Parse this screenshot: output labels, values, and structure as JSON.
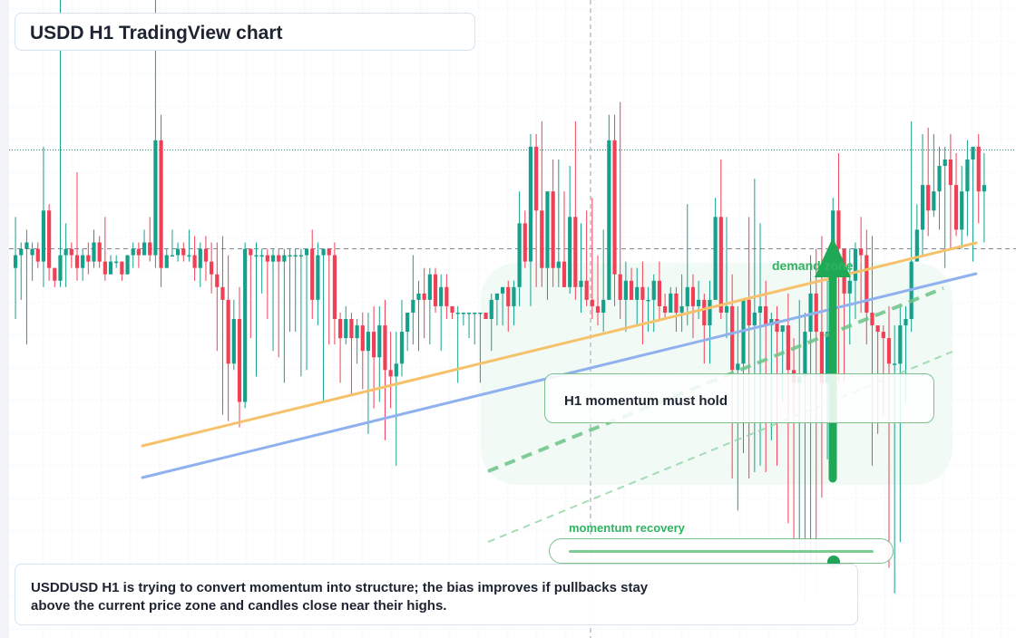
{
  "header": {
    "title": "USDD H1 TradingView chart"
  },
  "annotations": {
    "callout_text": "H1 momentum must hold",
    "zone_label": "demand zone",
    "momentum_label": "momentum recovery",
    "note_text": "USDDUSD H1 is trying to convert momentum into structure; the bias improves if pullbacks stay above the current price zone and candles close near their highs."
  },
  "momentum": {
    "level": 0.87
  },
  "colors": {
    "up": "#16a08c",
    "down": "#ef4056",
    "ma_fast": "#f5c26b",
    "ma_slow": "#8fb1ee",
    "zone": "#e8f6ec",
    "accent_green": "#1fa855"
  },
  "chart_data": {
    "type": "candlestick",
    "title": "USDD H1 TradingView chart",
    "ylim": [
      0,
      100
    ],
    "reference_lines": {
      "dashed_price": 61,
      "dotted_high": 76.5
    },
    "candles": [
      [
        58,
        60,
        66,
        50
      ],
      [
        60,
        61,
        62,
        53
      ],
      [
        61,
        62,
        64,
        46
      ],
      [
        60,
        61,
        62,
        56
      ],
      [
        61,
        59,
        62,
        58
      ],
      [
        59,
        67,
        77,
        55
      ],
      [
        67,
        58,
        68,
        56
      ],
      [
        58,
        56,
        58,
        55
      ],
      [
        56,
        60,
        100,
        55
      ],
      [
        60,
        61,
        65,
        55
      ],
      [
        61,
        60,
        62,
        58
      ],
      [
        60,
        58,
        73,
        56
      ],
      [
        58,
        60,
        61,
        56
      ],
      [
        60,
        59,
        62,
        57
      ],
      [
        59,
        62,
        64,
        58
      ],
      [
        62,
        59,
        63,
        58
      ],
      [
        59,
        57,
        66,
        56
      ],
      [
        57,
        59,
        60,
        58
      ],
      [
        59,
        59,
        60,
        58
      ],
      [
        59,
        57,
        59,
        56
      ],
      [
        57,
        60,
        60,
        57
      ],
      [
        60,
        61,
        62,
        58
      ],
      [
        61,
        60,
        62,
        58
      ],
      [
        60,
        62,
        64,
        60
      ],
      [
        62,
        60,
        66,
        59
      ],
      [
        60,
        78,
        100,
        58
      ],
      [
        78,
        58,
        82,
        55
      ],
      [
        58,
        60,
        61,
        58
      ],
      [
        60,
        60,
        64,
        60
      ],
      [
        60,
        61,
        62,
        59
      ],
      [
        61,
        60,
        62,
        59
      ],
      [
        60,
        60,
        64,
        59
      ],
      [
        60,
        58,
        63,
        56
      ],
      [
        58,
        61,
        62,
        55
      ],
      [
        61,
        59,
        63,
        56
      ],
      [
        59,
        57,
        62,
        54
      ],
      [
        57,
        55,
        62,
        45
      ],
      [
        55,
        53,
        63,
        35
      ],
      [
        53,
        43,
        60,
        34
      ],
      [
        43,
        50,
        53,
        42
      ],
      [
        50,
        37,
        55,
        33
      ],
      [
        37,
        61,
        62,
        36
      ],
      [
        61,
        60,
        61,
        47
      ],
      [
        60,
        60,
        62,
        41
      ],
      [
        60,
        60,
        61,
        54
      ],
      [
        60,
        59,
        61,
        50
      ],
      [
        59,
        60,
        61,
        45
      ],
      [
        60,
        59,
        61,
        44
      ],
      [
        59,
        60,
        61,
        40
      ],
      [
        60,
        60,
        61,
        48
      ],
      [
        60,
        60,
        61,
        48
      ],
      [
        60,
        60,
        61,
        41
      ],
      [
        60,
        61,
        61,
        42
      ],
      [
        61,
        53,
        64,
        50
      ],
      [
        53,
        60,
        62,
        49
      ],
      [
        60,
        61,
        61,
        37
      ],
      [
        61,
        60,
        61,
        46
      ],
      [
        60,
        50,
        62,
        46
      ],
      [
        50,
        47,
        51,
        40
      ],
      [
        47,
        50,
        52,
        46
      ],
      [
        50,
        47,
        51,
        38
      ],
      [
        47,
        49,
        50,
        43
      ],
      [
        49,
        45,
        51,
        39
      ],
      [
        45,
        48,
        51,
        32
      ],
      [
        48,
        44,
        52,
        36
      ],
      [
        44,
        49,
        52,
        37
      ],
      [
        49,
        42,
        53,
        31
      ],
      [
        42,
        41,
        48,
        36
      ],
      [
        41,
        43,
        48,
        27
      ],
      [
        43,
        48,
        53,
        41
      ],
      [
        48,
        51,
        51,
        45
      ],
      [
        51,
        53,
        60,
        46
      ],
      [
        53,
        54,
        56,
        45
      ],
      [
        54,
        53,
        58,
        47
      ],
      [
        53,
        57,
        58,
        46
      ],
      [
        57,
        52,
        58,
        51
      ],
      [
        52,
        55,
        57,
        45
      ],
      [
        55,
        52,
        57,
        50
      ],
      [
        52,
        51,
        52,
        50
      ],
      [
        51,
        51,
        52,
        40
      ],
      [
        51,
        51,
        51,
        49
      ],
      [
        51,
        51,
        51,
        47
      ],
      [
        51,
        51,
        51,
        46
      ],
      [
        51,
        51,
        51,
        40
      ],
      [
        51,
        50,
        51,
        50
      ],
      [
        50,
        53,
        54,
        45
      ],
      [
        53,
        54,
        54,
        49
      ],
      [
        54,
        55,
        55,
        49
      ],
      [
        55,
        52,
        56,
        48
      ],
      [
        52,
        55,
        56,
        49
      ],
      [
        55,
        65,
        70,
        52
      ],
      [
        65,
        59,
        67,
        58
      ],
      [
        59,
        77,
        79,
        52
      ],
      [
        77,
        67,
        79,
        55
      ],
      [
        67,
        58,
        81,
        55
      ],
      [
        58,
        70,
        70,
        53
      ],
      [
        70,
        58,
        75,
        55
      ],
      [
        58,
        59,
        75,
        55
      ],
      [
        59,
        55,
        70,
        55
      ],
      [
        55,
        66,
        74,
        54
      ],
      [
        66,
        55,
        81,
        53
      ],
      [
        55,
        56,
        65,
        51
      ],
      [
        56,
        53,
        67,
        52
      ],
      [
        53,
        52,
        69,
        50
      ],
      [
        52,
        51,
        60,
        49
      ],
      [
        51,
        53,
        64,
        48
      ],
      [
        53,
        78,
        82,
        54
      ],
      [
        78,
        57,
        82,
        52
      ],
      [
        57,
        53,
        84,
        50
      ],
      [
        53,
        56,
        59,
        48
      ],
      [
        56,
        53,
        58,
        53
      ],
      [
        53,
        55,
        58,
        49
      ],
      [
        55,
        53,
        59,
        46
      ],
      [
        53,
        53,
        55,
        48
      ],
      [
        53,
        56,
        57,
        48
      ],
      [
        56,
        52,
        59,
        50
      ],
      [
        52,
        51,
        54,
        50
      ],
      [
        51,
        54,
        55,
        52
      ],
      [
        54,
        51,
        55,
        48
      ],
      [
        51,
        52,
        57,
        48
      ],
      [
        52,
        55,
        68,
        49
      ],
      [
        55,
        52,
        57,
        47
      ],
      [
        52,
        53,
        56,
        50
      ],
      [
        53,
        49,
        54,
        43
      ],
      [
        49,
        53,
        56,
        43
      ],
      [
        53,
        66,
        69,
        53
      ],
      [
        66,
        51,
        75,
        50
      ],
      [
        51,
        52,
        66,
        47
      ],
      [
        52,
        42,
        57,
        25
      ],
      [
        42,
        43,
        52,
        20
      ],
      [
        43,
        53,
        53,
        29
      ],
      [
        53,
        49,
        66,
        25
      ],
      [
        49,
        51,
        72,
        26
      ],
      [
        51,
        52,
        65,
        27
      ],
      [
        52,
        49,
        56,
        26
      ],
      [
        49,
        50,
        51,
        31
      ],
      [
        50,
        48,
        52,
        27
      ],
      [
        48,
        49,
        48,
        37
      ],
      [
        49,
        42,
        54,
        18
      ],
      [
        42,
        40,
        47,
        11
      ],
      [
        40,
        41,
        53,
        12
      ],
      [
        41,
        48,
        51,
        6
      ],
      [
        48,
        54,
        60,
        11
      ],
      [
        54,
        48,
        61,
        7
      ],
      [
        48,
        40,
        63,
        22
      ],
      [
        40,
        48,
        56,
        28
      ],
      [
        48,
        67,
        69,
        47
      ],
      [
        67,
        61,
        76,
        40
      ],
      [
        61,
        54,
        59,
        40
      ],
      [
        54,
        56,
        61,
        46
      ],
      [
        56,
        61,
        62,
        50
      ],
      [
        61,
        60,
        66,
        51
      ],
      [
        60,
        51,
        64,
        46
      ],
      [
        51,
        49,
        63,
        27
      ],
      [
        49,
        48,
        49,
        32
      ],
      [
        48,
        47,
        49,
        35
      ],
      [
        47,
        43,
        52,
        11
      ],
      [
        43,
        43,
        49,
        7
      ],
      [
        43,
        49,
        52,
        15
      ],
      [
        49,
        50,
        52,
        37
      ],
      [
        50,
        59,
        81,
        48
      ],
      [
        59,
        64,
        68,
        62
      ],
      [
        64,
        71,
        79,
        60
      ],
      [
        71,
        67,
        80,
        63
      ],
      [
        67,
        70,
        79,
        66
      ],
      [
        70,
        74,
        77,
        64
      ],
      [
        74,
        75,
        77,
        58
      ],
      [
        75,
        71,
        79,
        61
      ],
      [
        71,
        64,
        76,
        63
      ],
      [
        64,
        70,
        74,
        61
      ],
      [
        70,
        75,
        78,
        63
      ],
      [
        75,
        77,
        77,
        59
      ],
      [
        77,
        70,
        79,
        65
      ],
      [
        70,
        71,
        76,
        62
      ]
    ]
  }
}
